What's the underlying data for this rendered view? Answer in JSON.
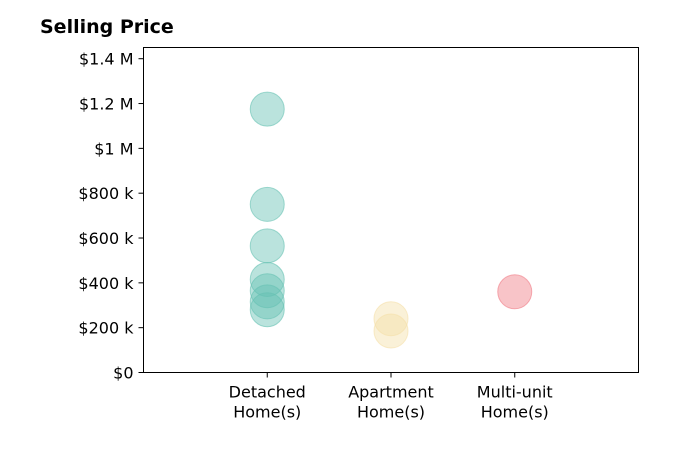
{
  "chart_data": {
    "type": "scatter",
    "title": "Selling Price",
    "xlabel": "",
    "ylabel": "",
    "categories": [
      [
        "Detached",
        "Home(s)"
      ],
      [
        "Apartment",
        "Home(s)"
      ],
      [
        "Multi-unit",
        "Home(s)"
      ]
    ],
    "ylim": [
      0,
      1450000
    ],
    "yticks": [
      0,
      200000,
      400000,
      600000,
      800000,
      1000000,
      1200000,
      1400000
    ],
    "ytick_labels": [
      "$0",
      "$200 k",
      "$400 k",
      "$600 k",
      "$800 k",
      "$1 M",
      "$1.2 M",
      "$1.4 M"
    ],
    "grid": false,
    "legend": "none",
    "series": [
      {
        "category": 0,
        "color": "#66c2b3",
        "values": [
          1175000,
          750000,
          565000,
          415000,
          365000,
          315000,
          280000
        ]
      },
      {
        "category": 1,
        "color": "#f5dfa8",
        "values": [
          240000,
          185000
        ]
      },
      {
        "category": 2,
        "color": "#f07c86",
        "values": [
          360000
        ]
      }
    ]
  }
}
